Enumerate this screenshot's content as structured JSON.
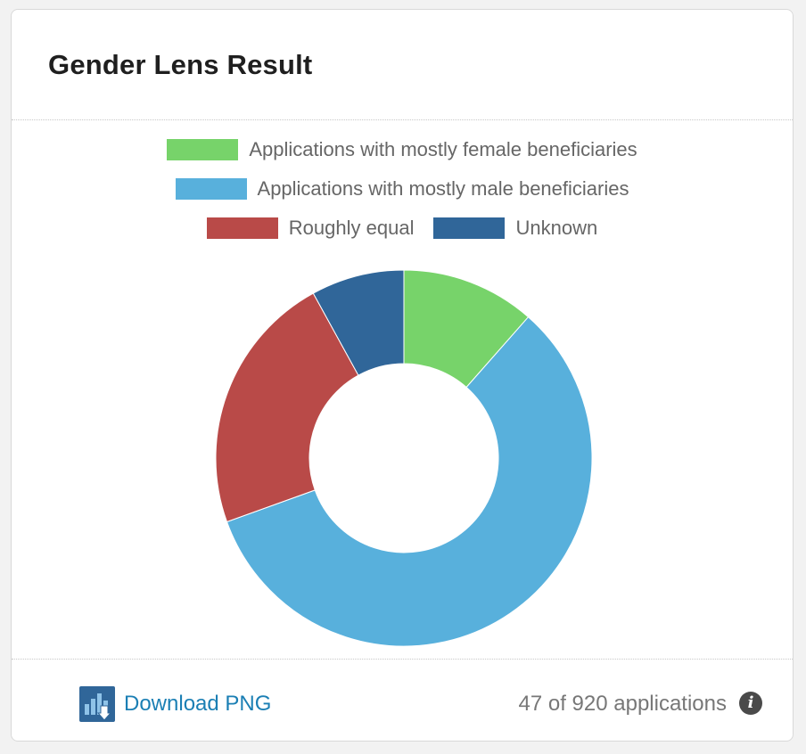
{
  "card": {
    "title": "Gender Lens Result"
  },
  "chart_data": {
    "type": "pie",
    "donut": true,
    "legend_placement": "top",
    "series": [
      {
        "name": "Applications with mostly female beneficiaries",
        "value": 11.5,
        "color": "#77d36a"
      },
      {
        "name": "Applications with mostly male beneficiaries",
        "value": 58.0,
        "color": "#58b0dc"
      },
      {
        "name": "Roughly equal",
        "value": 22.5,
        "color": "#b94a48"
      },
      {
        "name": "Unknown",
        "value": 8.0,
        "color": "#306699"
      }
    ]
  },
  "footer": {
    "download_label": "Download PNG",
    "download_icon": "chart-download-icon",
    "count_text": "47 of 920 applications",
    "info_icon": "info-icon",
    "info_glyph": "i"
  }
}
